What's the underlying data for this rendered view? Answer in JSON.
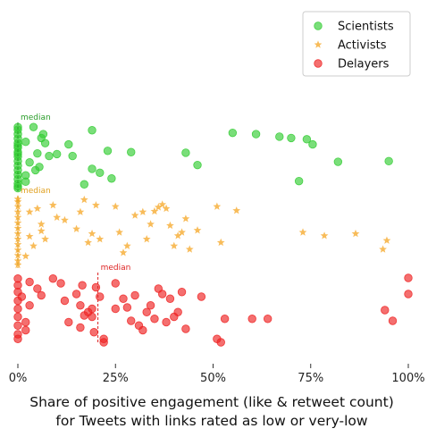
{
  "chart_data": {
    "type": "scatter",
    "xlabel_lines": [
      "Share of positive engagement (like & retweet count)",
      "for Tweets with links rated as low or very-low"
    ],
    "xlim": [
      0,
      1
    ],
    "xticks": [
      0,
      0.25,
      0.5,
      0.75,
      1.0
    ],
    "xtick_labels": [
      "0%",
      "25%",
      "50%",
      "75%",
      "100%"
    ],
    "grid": false,
    "legend_position": "top-right",
    "median_label": "median",
    "series": [
      {
        "name": "Scientists",
        "marker": "circle",
        "color": "#33cc33",
        "median": 0.0,
        "points": [
          [
            0,
            0.93
          ],
          [
            0,
            0.86
          ],
          [
            0,
            0.79
          ],
          [
            0,
            0.72
          ],
          [
            0,
            0.65
          ],
          [
            0,
            0.58
          ],
          [
            0,
            0.51
          ],
          [
            0,
            0.44
          ],
          [
            0,
            0.37
          ],
          [
            0,
            0.3
          ],
          [
            0,
            0.23
          ],
          [
            0,
            0.16
          ],
          [
            0,
            0.09
          ],
          [
            0,
            0.02
          ],
          [
            0,
            0.97
          ],
          [
            0,
            0.05
          ],
          [
            0,
            0.55
          ],
          [
            0,
            0.68
          ],
          [
            0.02,
            0.74
          ],
          [
            0.04,
            0.97
          ],
          [
            0.03,
            0.42
          ],
          [
            0.06,
            0.8
          ],
          [
            0.07,
            0.72
          ],
          [
            0.05,
            0.56
          ],
          [
            0.08,
            0.52
          ],
          [
            0.065,
            0.86
          ],
          [
            0.02,
            0.22
          ],
          [
            0.045,
            0.3
          ],
          [
            0.055,
            0.35
          ],
          [
            0.1,
            0.55
          ],
          [
            0.13,
            0.7
          ],
          [
            0.14,
            0.52
          ],
          [
            0.19,
            0.92
          ],
          [
            0.19,
            0.32
          ],
          [
            0.21,
            0.26
          ],
          [
            0.23,
            0.6
          ],
          [
            0.24,
            0.17
          ],
          [
            0.17,
            0.08
          ],
          [
            0.29,
            0.58
          ],
          [
            0.43,
            0.57
          ],
          [
            0.46,
            0.38
          ],
          [
            0.55,
            0.88
          ],
          [
            0.61,
            0.86
          ],
          [
            0.67,
            0.82
          ],
          [
            0.7,
            0.8
          ],
          [
            0.72,
            0.13
          ],
          [
            0.74,
            0.78
          ],
          [
            0.755,
            0.7
          ],
          [
            0.82,
            0.43
          ],
          [
            0.95,
            0.44
          ],
          [
            0.02,
            0.12
          ]
        ]
      },
      {
        "name": "Activists",
        "marker": "star",
        "color": "#f5a623",
        "median": 0.0,
        "points": [
          [
            0,
            0.95
          ],
          [
            0,
            0.88
          ],
          [
            0,
            0.8
          ],
          [
            0,
            0.72
          ],
          [
            0,
            0.64
          ],
          [
            0,
            0.56
          ],
          [
            0,
            0.48
          ],
          [
            0,
            0.4
          ],
          [
            0,
            0.32
          ],
          [
            0,
            0.24
          ],
          [
            0,
            0.16
          ],
          [
            0,
            0.08
          ],
          [
            0,
            0.02
          ],
          [
            0,
            0.99
          ],
          [
            0.03,
            0.8
          ],
          [
            0.05,
            0.85
          ],
          [
            0.06,
            0.62
          ],
          [
            0.03,
            0.44
          ],
          [
            0.04,
            0.3
          ],
          [
            0.02,
            0.15
          ],
          [
            0.06,
            0.52
          ],
          [
            0.09,
            0.9
          ],
          [
            0.1,
            0.72
          ],
          [
            0.12,
            0.68
          ],
          [
            0.07,
            0.4
          ],
          [
            0.15,
            0.55
          ],
          [
            0.16,
            0.8
          ],
          [
            0.17,
            0.98
          ],
          [
            0.18,
            0.35
          ],
          [
            0.19,
            0.48
          ],
          [
            0.2,
            0.9
          ],
          [
            0.21,
            0.4
          ],
          [
            0.25,
            0.88
          ],
          [
            0.26,
            0.5
          ],
          [
            0.27,
            0.2
          ],
          [
            0.28,
            0.3
          ],
          [
            0.3,
            0.75
          ],
          [
            0.32,
            0.8
          ],
          [
            0.33,
            0.4
          ],
          [
            0.34,
            0.62
          ],
          [
            0.35,
            0.81
          ],
          [
            0.36,
            0.87
          ],
          [
            0.37,
            0.91
          ],
          [
            0.38,
            0.85
          ],
          [
            0.39,
            0.6
          ],
          [
            0.4,
            0.3
          ],
          [
            0.41,
            0.45
          ],
          [
            0.42,
            0.5
          ],
          [
            0.43,
            0.7
          ],
          [
            0.44,
            0.25
          ],
          [
            0.46,
            0.53
          ],
          [
            0.51,
            0.88
          ],
          [
            0.52,
            0.35
          ],
          [
            0.56,
            0.82
          ],
          [
            0.73,
            0.5
          ],
          [
            0.785,
            0.45
          ],
          [
            0.865,
            0.48
          ],
          [
            0.935,
            0.25
          ],
          [
            0.945,
            0.38
          ]
        ]
      },
      {
        "name": "Delayers",
        "marker": "circle",
        "color": "#ee2222",
        "median": 0.205,
        "points": [
          [
            0,
            0.95
          ],
          [
            0,
            0.85
          ],
          [
            0,
            0.75
          ],
          [
            0,
            0.62
          ],
          [
            0,
            0.5
          ],
          [
            0,
            0.38
          ],
          [
            0,
            0.25
          ],
          [
            0,
            0.12
          ],
          [
            0,
            0.05
          ],
          [
            0.01,
            0.68
          ],
          [
            0.03,
            0.55
          ],
          [
            0.02,
            0.3
          ],
          [
            0.02,
            0.18
          ],
          [
            0.03,
            0.9
          ],
          [
            0.05,
            0.8
          ],
          [
            0.06,
            0.7
          ],
          [
            0.09,
            0.95
          ],
          [
            0.11,
            0.88
          ],
          [
            0.12,
            0.62
          ],
          [
            0.13,
            0.3
          ],
          [
            0.15,
            0.72
          ],
          [
            0.16,
            0.55
          ],
          [
            0.17,
            0.4
          ],
          [
            0.18,
            0.45
          ],
          [
            0.16,
            0.22
          ],
          [
            0.165,
            0.85
          ],
          [
            0.19,
            0.38
          ],
          [
            0.195,
            0.15
          ],
          [
            0.2,
            0.82
          ],
          [
            0.21,
            0.68
          ],
          [
            0.19,
            0.5
          ],
          [
            0.22,
            0.05
          ],
          [
            0.22,
            0.0
          ],
          [
            0.25,
            0.88
          ],
          [
            0.25,
            0.5
          ],
          [
            0.27,
            0.65
          ],
          [
            0.28,
            0.52
          ],
          [
            0.29,
            0.32
          ],
          [
            0.3,
            0.7
          ],
          [
            0.31,
            0.25
          ],
          [
            0.32,
            0.18
          ],
          [
            0.33,
            0.45
          ],
          [
            0.34,
            0.55
          ],
          [
            0.35,
            0.35
          ],
          [
            0.36,
            0.8
          ],
          [
            0.37,
            0.72
          ],
          [
            0.38,
            0.3
          ],
          [
            0.39,
            0.65
          ],
          [
            0.4,
            0.38
          ],
          [
            0.41,
            0.45
          ],
          [
            0.42,
            0.75
          ],
          [
            0.43,
            0.2
          ],
          [
            0.47,
            0.68
          ],
          [
            0.53,
            0.35
          ],
          [
            0.51,
            0.05
          ],
          [
            0.52,
            0.0
          ],
          [
            0.6,
            0.35
          ],
          [
            0.64,
            0.35
          ],
          [
            0.94,
            0.48
          ],
          [
            0.96,
            0.32
          ],
          [
            1.0,
            0.96
          ],
          [
            1.0,
            0.72
          ]
        ]
      }
    ]
  }
}
